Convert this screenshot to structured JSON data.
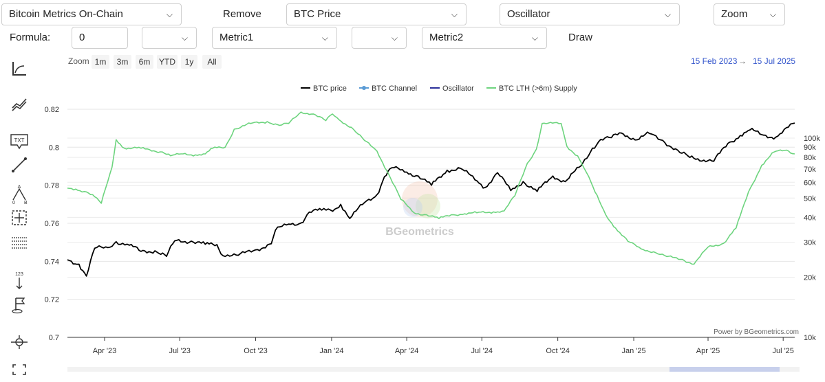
{
  "header": {
    "metric_select": "Bitcoin Metrics On-Chain",
    "remove_label": "Remove",
    "price_select": "BTC Price",
    "oscillator_select": "Oscillator",
    "zoom_select": "Zoom",
    "formula_label": "Formula:",
    "formula_value": "0",
    "op1_select": "",
    "metric1_select": "Metric1",
    "op2_select": "",
    "metric2_select": "Metric2",
    "draw_label": "Draw"
  },
  "range": {
    "zoom_label": "Zoom",
    "buttons": [
      "1m",
      "3m",
      "6m",
      "YTD",
      "1y",
      "All"
    ],
    "from": "15 Feb 2023",
    "arrow": "→",
    "to": "15 Jul 2025"
  },
  "watermark": "BGeometrics",
  "credit": "Power by BGeometrics.com",
  "icons": [
    "axis-tool-icon",
    "trendline-tool-icon",
    "text-tool-icon",
    "line-tool-icon",
    "pattern-tool-icon",
    "measure-tool-icon",
    "fibonacci-tool-icon",
    "counter-tool-icon",
    "flag-tool-icon",
    "navigator-tool-icon",
    "fullscreen-tool-icon"
  ],
  "chart_data": {
    "type": "line",
    "x_ticks": [
      "Apr '23",
      "Jul '23",
      "Oct '23",
      "Jan '24",
      "Apr '24",
      "Jul '24",
      "Oct '24",
      "Jan '25",
      "Apr '25",
      "Jul '25"
    ],
    "left_axis": {
      "ticks": [
        "0.82",
        "0.8",
        "0.78",
        "0.76",
        "0.74",
        "0.72",
        "0.7"
      ],
      "range": [
        0.7,
        0.82
      ]
    },
    "right_axis": {
      "scale": "log",
      "ticks": [
        "100k",
        "90k",
        "80k",
        "70k",
        "60k",
        "50k",
        "40k",
        "30k",
        "20k",
        "10k"
      ],
      "range": [
        10000,
        120000
      ]
    },
    "legend": {
      "placement": "top-center",
      "entries": [
        "BTC price",
        "BTC Channel",
        "Oscillator",
        "BTC LTH (>6m) Supply"
      ]
    },
    "series": [
      {
        "name": "BTC price",
        "axis": "right",
        "color": "#000000",
        "points": [
          [
            "2023-02-15",
            24500
          ],
          [
            "2023-03-01",
            23300
          ],
          [
            "2023-03-10",
            20300
          ],
          [
            "2023-03-20",
            28000
          ],
          [
            "2023-04-05",
            28200
          ],
          [
            "2023-04-15",
            30200
          ],
          [
            "2023-05-01",
            29000
          ],
          [
            "2023-05-15",
            27000
          ],
          [
            "2023-06-01",
            27200
          ],
          [
            "2023-06-15",
            25500
          ],
          [
            "2023-06-25",
            30500
          ],
          [
            "2023-07-15",
            30400
          ],
          [
            "2023-08-01",
            29300
          ],
          [
            "2023-08-15",
            29200
          ],
          [
            "2023-08-20",
            26200
          ],
          [
            "2023-09-10",
            25800
          ],
          [
            "2023-10-01",
            27500
          ],
          [
            "2023-10-20",
            29500
          ],
          [
            "2023-10-25",
            34500
          ],
          [
            "2023-11-10",
            37000
          ],
          [
            "2023-11-25",
            37500
          ],
          [
            "2023-12-05",
            42500
          ],
          [
            "2023-12-20",
            43500
          ],
          [
            "2024-01-05",
            44000
          ],
          [
            "2024-01-12",
            46500
          ],
          [
            "2024-01-23",
            39500
          ],
          [
            "2024-02-10",
            47500
          ],
          [
            "2024-02-25",
            52000
          ],
          [
            "2024-03-05",
            64000
          ],
          [
            "2024-03-14",
            71000
          ],
          [
            "2024-04-01",
            67500
          ],
          [
            "2024-04-15",
            64500
          ],
          [
            "2024-05-01",
            58000
          ],
          [
            "2024-05-20",
            69000
          ],
          [
            "2024-06-05",
            70500
          ],
          [
            "2024-06-25",
            61000
          ],
          [
            "2024-07-05",
            56500
          ],
          [
            "2024-07-20",
            67000
          ],
          [
            "2024-08-05",
            54500
          ],
          [
            "2024-08-20",
            60500
          ],
          [
            "2024-09-06",
            54000
          ],
          [
            "2024-09-25",
            64500
          ],
          [
            "2024-10-10",
            60500
          ],
          [
            "2024-10-29",
            72500
          ],
          [
            "2024-11-12",
            89000
          ],
          [
            "2024-11-22",
            98500
          ],
          [
            "2024-12-05",
            100500
          ],
          [
            "2024-12-17",
            106000
          ],
          [
            "2025-01-05",
            98000
          ],
          [
            "2025-01-20",
            105500
          ],
          [
            "2025-02-05",
            97500
          ],
          [
            "2025-02-26",
            84500
          ],
          [
            "2025-03-10",
            80000
          ],
          [
            "2025-04-08",
            76500
          ],
          [
            "2025-04-25",
            94000
          ],
          [
            "2025-05-10",
            103000
          ],
          [
            "2025-05-22",
            110000
          ],
          [
            "2025-06-05",
            104000
          ],
          [
            "2025-06-22",
            101000
          ],
          [
            "2025-07-15",
            119000
          ]
        ]
      },
      {
        "name": "BTC LTH (>6m) Supply",
        "axis": "left",
        "color": "#6dd47e",
        "points": [
          [
            "2023-02-15",
            0.7785
          ],
          [
            "2023-02-25",
            0.778
          ],
          [
            "2023-03-10",
            0.7765
          ],
          [
            "2023-03-20",
            0.774
          ],
          [
            "2023-03-28",
            0.7705
          ],
          [
            "2023-04-10",
            0.7895
          ],
          [
            "2023-04-15",
            0.804
          ],
          [
            "2023-04-25",
            0.7995
          ],
          [
            "2023-05-15",
            0.7995
          ],
          [
            "2023-06-10",
            0.7975
          ],
          [
            "2023-06-20",
            0.7955
          ],
          [
            "2023-07-05",
            0.7965
          ],
          [
            "2023-07-20",
            0.796
          ],
          [
            "2023-08-01",
            0.7965
          ],
          [
            "2023-08-10",
            0.7995
          ],
          [
            "2023-08-25",
            0.8
          ],
          [
            "2023-09-05",
            0.8095
          ],
          [
            "2023-09-25",
            0.8125
          ],
          [
            "2023-10-15",
            0.8135
          ],
          [
            "2023-10-30",
            0.8115
          ],
          [
            "2023-11-10",
            0.8125
          ],
          [
            "2023-11-25",
            0.8185
          ],
          [
            "2023-12-10",
            0.8175
          ],
          [
            "2023-12-25",
            0.814
          ],
          [
            "2024-01-02",
            0.8175
          ],
          [
            "2024-01-10",
            0.8145
          ],
          [
            "2024-01-25",
            0.8105
          ],
          [
            "2024-02-10",
            0.8035
          ],
          [
            "2024-02-25",
            0.798
          ],
          [
            "2024-03-10",
            0.786
          ],
          [
            "2024-03-25",
            0.7725
          ],
          [
            "2024-04-10",
            0.7655
          ],
          [
            "2024-04-25",
            0.7645
          ],
          [
            "2024-05-10",
            0.7625
          ],
          [
            "2024-05-25",
            0.7645
          ],
          [
            "2024-06-10",
            0.765
          ],
          [
            "2024-06-25",
            0.7655
          ],
          [
            "2024-07-15",
            0.766
          ],
          [
            "2024-07-28",
            0.7665
          ],
          [
            "2024-08-10",
            0.7745
          ],
          [
            "2024-08-25",
            0.7915
          ],
          [
            "2024-09-05",
            0.799
          ],
          [
            "2024-09-12",
            0.8125
          ],
          [
            "2024-10-05",
            0.8125
          ],
          [
            "2024-10-12",
            0.8005
          ],
          [
            "2024-10-25",
            0.7955
          ],
          [
            "2024-11-05",
            0.7865
          ],
          [
            "2024-11-15",
            0.7765
          ],
          [
            "2024-11-28",
            0.7645
          ],
          [
            "2024-12-10",
            0.7575
          ],
          [
            "2024-12-25",
            0.7505
          ],
          [
            "2025-01-10",
            0.7465
          ],
          [
            "2025-01-25",
            0.745
          ],
          [
            "2025-02-10",
            0.7425
          ],
          [
            "2025-03-01",
            0.741
          ],
          [
            "2025-03-15",
            0.7385
          ],
          [
            "2025-04-01",
            0.7475
          ],
          [
            "2025-04-20",
            0.7495
          ],
          [
            "2025-05-05",
            0.7575
          ],
          [
            "2025-05-20",
            0.7765
          ],
          [
            "2025-06-05",
            0.7905
          ],
          [
            "2025-06-20",
            0.7975
          ],
          [
            "2025-07-05",
            0.7985
          ],
          [
            "2025-07-15",
            0.7965
          ]
        ]
      }
    ],
    "grid": true
  }
}
